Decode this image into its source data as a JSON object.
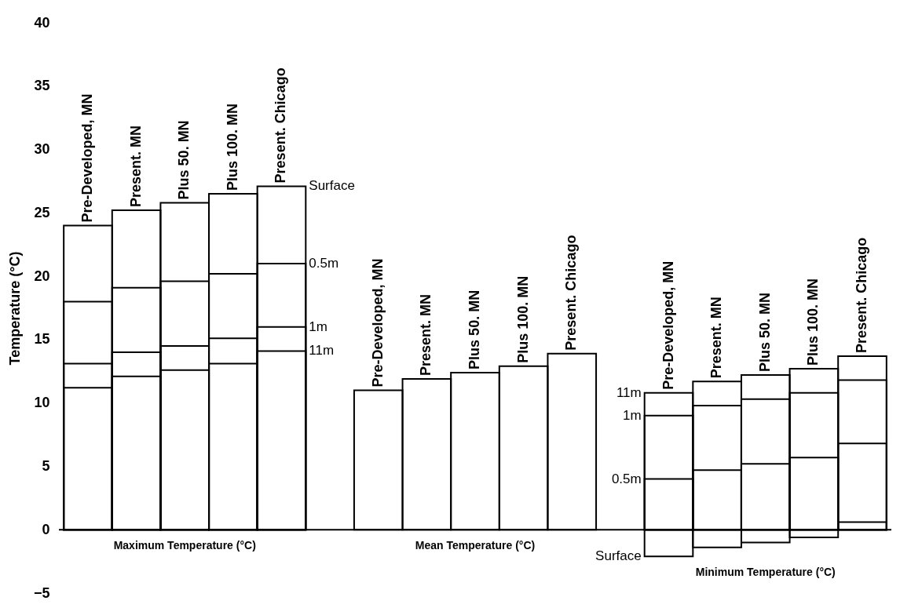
{
  "chart_data": {
    "type": "bar",
    "ylabel": "Temperature (°C)",
    "categories": [
      "Pre-Developed, MN",
      "Present. MN",
      "Plus 50. MN",
      "Plus 100. MN",
      "Present. Chicago",
      null,
      "Pre-Developed, MN",
      "Present. MN",
      "Plus 50. MN",
      "Plus 100. MN",
      "Present. Chicago",
      null,
      "Pre-Developed, MN",
      "Present. MN",
      "Plus 50. MN",
      "Plus 100. MN",
      "Present. Chicago"
    ],
    "series": [
      {
        "name": "Surface",
        "color": "#000000",
        "values": [
          24.0,
          25.2,
          25.8,
          26.5,
          27.1,
          null,
          11.0,
          11.9,
          12.4,
          12.9,
          13.9,
          null,
          -2.1,
          -1.4,
          -1.0,
          -0.6,
          0.6
        ]
      },
      {
        "name": "0.5m",
        "color": "#000000",
        "values": [
          18.0,
          19.1,
          19.6,
          20.2,
          21.0,
          null,
          null,
          null,
          null,
          null,
          null,
          null,
          4.0,
          4.7,
          5.2,
          5.7,
          6.8
        ]
      },
      {
        "name": "1m",
        "color": "#000000",
        "values": [
          13.1,
          14.0,
          14.5,
          15.1,
          16.0,
          null,
          null,
          null,
          null,
          null,
          null,
          null,
          9.0,
          9.8,
          10.3,
          10.8,
          11.8
        ]
      },
      {
        "name": "11m",
        "color": "#000000",
        "values": [
          11.2,
          12.1,
          12.6,
          13.1,
          14.1,
          null,
          null,
          null,
          null,
          null,
          null,
          null,
          10.8,
          11.7,
          12.2,
          12.7,
          13.7
        ]
      }
    ],
    "ylim": [
      -5,
      40
    ],
    "yticks": [
      -5,
      0,
      5,
      10,
      15,
      20,
      25,
      30,
      35,
      40
    ],
    "annotations": [
      "Maximum Temperature (°C)",
      "Mean Temperature (°C)",
      "Minimum Temperature (°C)"
    ]
  }
}
